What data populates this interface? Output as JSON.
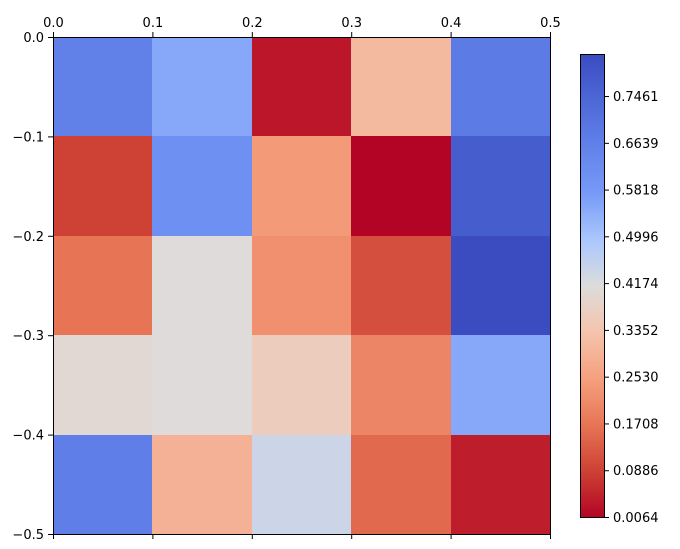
{
  "chart_data": {
    "type": "heatmap",
    "colormap": "coolwarm",
    "x_axis": {
      "position": "top",
      "range": [
        0.0,
        0.5
      ],
      "tick_values": [
        0.0,
        0.1,
        0.2,
        0.3,
        0.4,
        0.5
      ],
      "tick_labels": [
        "0.0",
        "0.1",
        "0.2",
        "0.3",
        "0.4",
        "0.5"
      ]
    },
    "y_axis": {
      "range": [
        0.0,
        -0.5
      ],
      "tick_values": [
        0.0,
        -0.1,
        -0.2,
        -0.3,
        -0.4,
        -0.5
      ],
      "tick_labels": [
        "0.0",
        "−0.1",
        "−0.2",
        "−0.3",
        "−0.4",
        "−0.5"
      ]
    },
    "grid": false,
    "rows": 5,
    "cols": 5,
    "values": [
      [
        0.66,
        0.55,
        0.03,
        0.31,
        0.68
      ],
      [
        0.09,
        0.61,
        0.24,
        0.0,
        0.77
      ],
      [
        0.17,
        0.41,
        0.22,
        0.11,
        0.82
      ],
      [
        0.4,
        0.41,
        0.36,
        0.2,
        0.55
      ],
      [
        0.67,
        0.29,
        0.44,
        0.15,
        0.04
      ]
    ],
    "colorbar": {
      "range": [
        0.0064,
        0.82
      ],
      "tick_values": [
        0.0064,
        0.0886,
        0.1708,
        0.253,
        0.3352,
        0.4174,
        0.4996,
        0.5818,
        0.6639,
        0.7461
      ],
      "tick_labels": [
        "0.0064",
        "0.0886",
        "0.1708",
        "0.2530",
        "0.3352",
        "0.4174",
        "0.4996",
        "0.5818",
        "0.6639",
        "0.7461"
      ]
    }
  }
}
